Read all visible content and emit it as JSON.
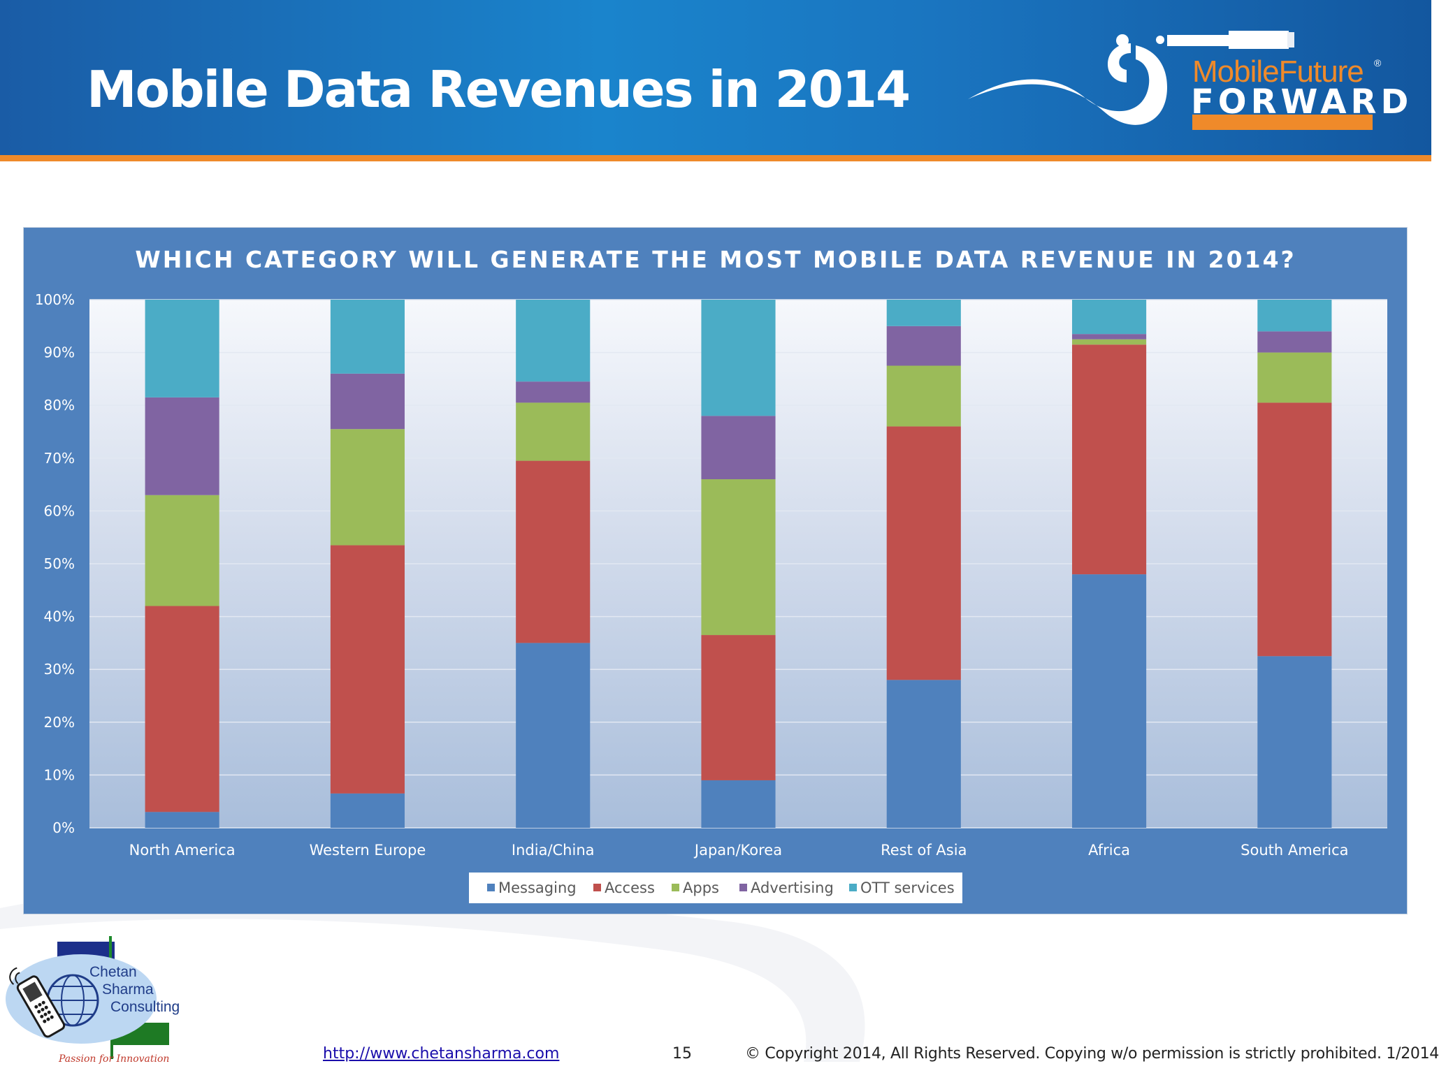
{
  "slide": {
    "title": "Mobile Data Revenues in 2014"
  },
  "logo_mobile_future": {
    "word1": "MobileFuture",
    "word2": "FORWARD",
    "mark": "®"
  },
  "logo_csc": {
    "line1": "Chetan",
    "line2": "Sharma",
    "line3": "Consulting",
    "tagline": "Passion for Innovation"
  },
  "footer": {
    "url": "http://www.chetansharma.com",
    "page": "15",
    "copyright": "© Copyright 2014, All Rights Reserved. Copying w/o permission is strictly prohibited. 1/2014"
  },
  "colors": {
    "header": "#1a75c0",
    "accent_orange": "#ef8a2a",
    "chart_panel": "#4f81bd"
  },
  "chart_data": {
    "type": "bar",
    "stacked": true,
    "title": "WHICH CATEGORY WILL GENERATE THE MOST MOBILE DATA REVENUE IN 2014?",
    "categories": [
      "North America",
      "Western Europe",
      "India/China",
      "Japan/Korea",
      "Rest of Asia",
      "Africa",
      "South America"
    ],
    "ylim": [
      0,
      100
    ],
    "yticks": [
      "0%",
      "10%",
      "20%",
      "30%",
      "40%",
      "50%",
      "60%",
      "70%",
      "80%",
      "90%",
      "100%"
    ],
    "grid": true,
    "legend_position": "bottom",
    "series": [
      {
        "name": "Messaging",
        "color": "#4f81bd",
        "values": [
          3,
          6.5,
          35,
          9,
          28,
          48,
          32.5
        ]
      },
      {
        "name": "Access",
        "color": "#c0504d",
        "values": [
          39,
          47,
          34.5,
          27.5,
          48,
          43.5,
          48
        ]
      },
      {
        "name": "Apps",
        "color": "#9bbb59",
        "values": [
          21,
          22,
          11,
          29.5,
          11.5,
          1,
          9.5
        ]
      },
      {
        "name": "Advertising",
        "color": "#8064a2",
        "values": [
          18.5,
          10.5,
          4,
          12,
          7.5,
          1,
          4
        ]
      },
      {
        "name": "OTT services",
        "color": "#4bacc6",
        "values": [
          18.5,
          14,
          15.5,
          22,
          5,
          6.5,
          6
        ]
      }
    ]
  }
}
